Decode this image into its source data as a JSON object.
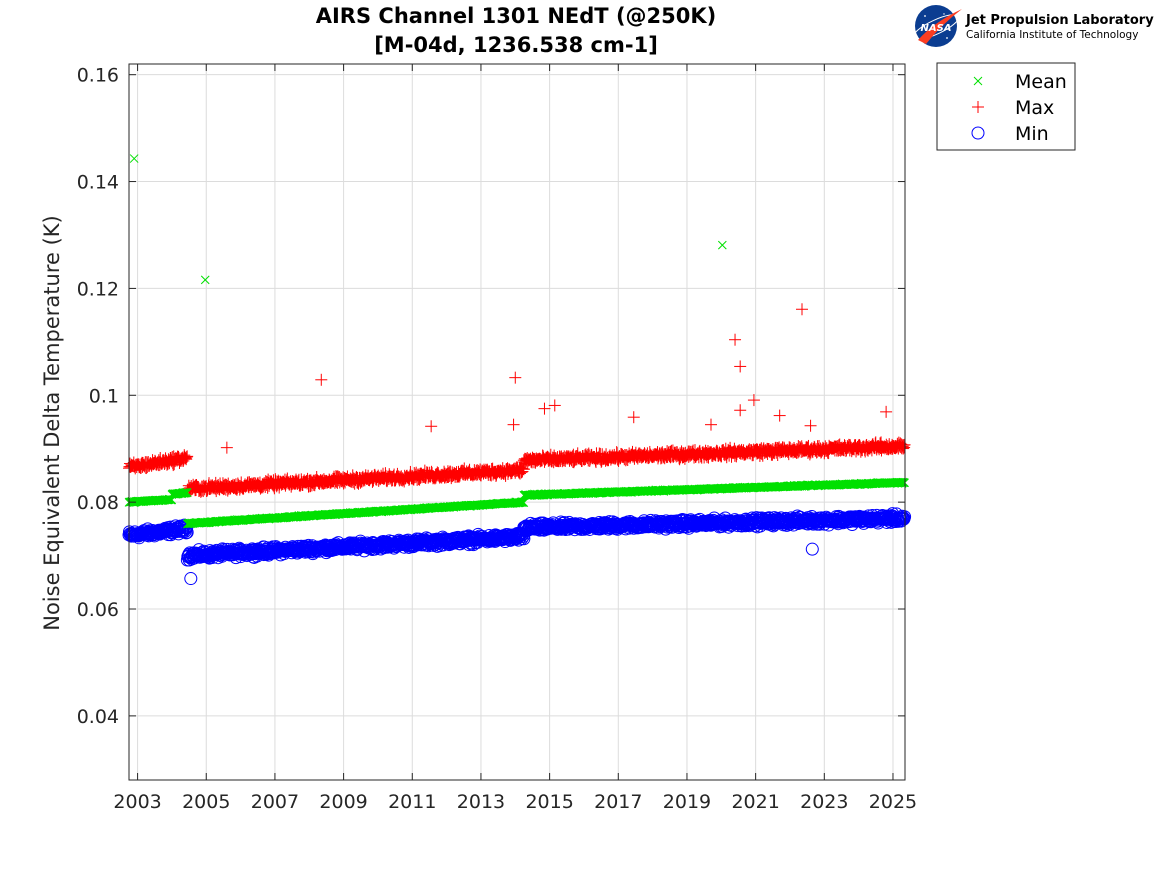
{
  "chart_data": {
    "type": "scatter",
    "title": "AIRS Channel 1301 NEdT (@250K)",
    "subtitle": "[M-04d, 1236.538 cm-1]",
    "xlabel": "",
    "ylabel": "Noise Equivalent Delta Temperature (K)",
    "xlim": [
      2002.75,
      2025.35
    ],
    "ylim": [
      0.028,
      0.162
    ],
    "xticks": [
      "2003",
      "2005",
      "2007",
      "2009",
      "2011",
      "2013",
      "2015",
      "2017",
      "2019",
      "2021",
      "2023",
      "2025"
    ],
    "yticks": [
      "0.04",
      "0.06",
      "0.08",
      "0.1",
      "0.12",
      "0.14",
      "0.16"
    ],
    "grid": true,
    "legend_position": "outside-top-right",
    "series": [
      {
        "name": "Mean",
        "marker": "x",
        "color": "#00e000",
        "segments": [
          {
            "x": [
              2002.75,
              2004.0
            ],
            "y": [
              0.08,
              0.0805
            ]
          },
          {
            "x": [
              2004.0,
              2004.45
            ],
            "y": [
              0.0815,
              0.0818
            ]
          },
          {
            "x": [
              2004.45,
              2014.25
            ],
            "y": [
              0.076,
              0.08
            ]
          },
          {
            "x": [
              2014.25,
              2025.35
            ],
            "y": [
              0.0813,
              0.0837
            ]
          }
        ],
        "outliers": [
          {
            "x": 2002.9,
            "y": 0.1443
          },
          {
            "x": 2004.97,
            "y": 0.1216
          },
          {
            "x": 2020.03,
            "y": 0.1281
          }
        ]
      },
      {
        "name": "Max",
        "marker": "+",
        "color": "#ff0000",
        "segments": [
          {
            "x": [
              2002.75,
              2004.45
            ],
            "y": [
              0.0865,
              0.0883
            ]
          },
          {
            "x": [
              2004.45,
              2014.25
            ],
            "y": [
              0.0825,
              0.086
            ]
          },
          {
            "x": [
              2014.25,
              2025.35
            ],
            "y": [
              0.0878,
              0.0905
            ]
          }
        ],
        "outliers": [
          {
            "x": 2005.6,
            "y": 0.0902
          },
          {
            "x": 2008.35,
            "y": 0.1029
          },
          {
            "x": 2011.55,
            "y": 0.0942
          },
          {
            "x": 2014.0,
            "y": 0.1033
          },
          {
            "x": 2013.95,
            "y": 0.0945
          },
          {
            "x": 2014.85,
            "y": 0.0975
          },
          {
            "x": 2015.15,
            "y": 0.0981
          },
          {
            "x": 2017.45,
            "y": 0.0959
          },
          {
            "x": 2019.7,
            "y": 0.0945
          },
          {
            "x": 2020.4,
            "y": 0.1104
          },
          {
            "x": 2020.55,
            "y": 0.1054
          },
          {
            "x": 2020.55,
            "y": 0.0972
          },
          {
            "x": 2020.95,
            "y": 0.0991
          },
          {
            "x": 2021.7,
            "y": 0.0962
          },
          {
            "x": 2022.35,
            "y": 0.1161
          },
          {
            "x": 2022.6,
            "y": 0.0943
          },
          {
            "x": 2024.8,
            "y": 0.0969
          }
        ]
      },
      {
        "name": "Min",
        "marker": "o",
        "color": "#0000ff",
        "segments": [
          {
            "x": [
              2002.75,
              2004.45
            ],
            "y": [
              0.0738,
              0.075
            ]
          },
          {
            "x": [
              2004.45,
              2014.25
            ],
            "y": [
              0.07,
              0.0735
            ]
          },
          {
            "x": [
              2014.25,
              2025.35
            ],
            "y": [
              0.0752,
              0.077
            ]
          }
        ],
        "outliers": [
          {
            "x": 2004.55,
            "y": 0.0657
          },
          {
            "x": 2022.65,
            "y": 0.0712
          }
        ]
      }
    ]
  },
  "logo": {
    "emblem_text": "NASA",
    "org_name": "Jet Propulsion Laboratory",
    "org_sub": "California Institute of Technology"
  },
  "colors": {
    "mean": "#00e000",
    "max": "#ff0000",
    "min": "#0000ff",
    "grid": "#dcdcdc",
    "axis": "#262626",
    "nasa_blue": "#0b3d91",
    "nasa_red": "#fc3d21"
  }
}
